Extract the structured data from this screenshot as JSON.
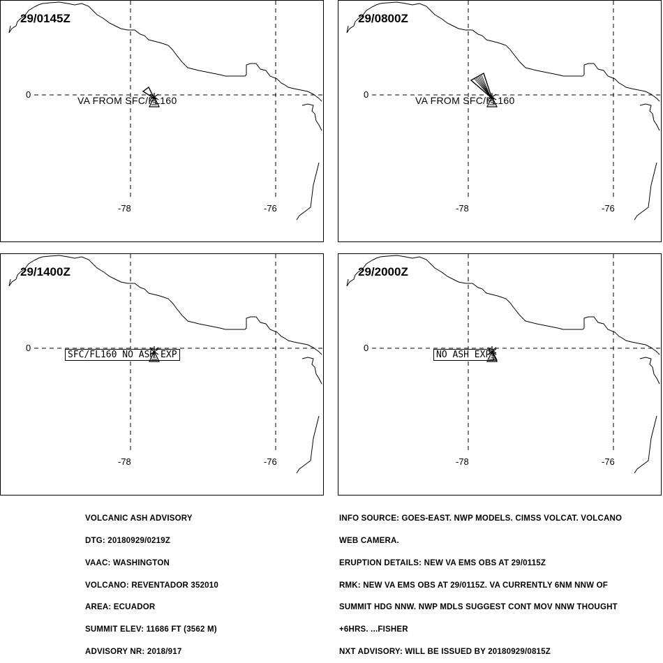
{
  "panels": [
    {
      "time": "29/0145Z",
      "lat_label": "0",
      "lon_labels": [
        "-78",
        "-76"
      ],
      "label_text": "VA FROM SFC/FL160",
      "label_style": "plain",
      "ash_shape": "small"
    },
    {
      "time": "29/0800Z",
      "lat_label": "0",
      "lon_labels": [
        "-78",
        "-76"
      ],
      "label_text": "VA FROM SFC/FL160",
      "label_style": "plain",
      "ash_shape": "large"
    },
    {
      "time": "29/1400Z",
      "lat_label": "0",
      "lon_labels": [
        "-78",
        "-76"
      ],
      "label_text": "SFC/FL160 NO ASH EXP",
      "label_style": "boxed",
      "ash_shape": "none"
    },
    {
      "time": "29/2000Z",
      "lat_label": "0",
      "lon_labels": [
        "-78",
        "-76"
      ],
      "label_text": "NO ASH EXP",
      "label_style": "boxed",
      "ash_shape": "none"
    }
  ],
  "advisory_left": [
    "VOLCANIC ASH ADVISORY",
    "DTG: 20180929/0219Z",
    "VAAC: WASHINGTON",
    "VOLCANO: REVENTADOR 352010",
    "AREA: ECUADOR",
    "SUMMIT ELEV: 11686 FT (3562 M)",
    "ADVISORY NR: 2018/917"
  ],
  "advisory_right": [
    "INFO SOURCE: GOES-EAST. NWP MODELS. CIMSS VOLCAT. VOLCANO",
    "WEB CAMERA.",
    "ERUPTION DETAILS: NEW VA EMS OBS AT 29/0115Z",
    "RMK: NEW VA EMS OBS AT 29/0115Z. VA CURRENTLY 6NM NNW OF",
    "SUMMIT HDG NNW. NWP MDLS SUGGEST CONT MOV NNW THOUGHT",
    "+6HRS. ...FISHER",
    "NXT ADVISORY: WILL BE ISSUED BY 20180929/0815Z"
  ]
}
